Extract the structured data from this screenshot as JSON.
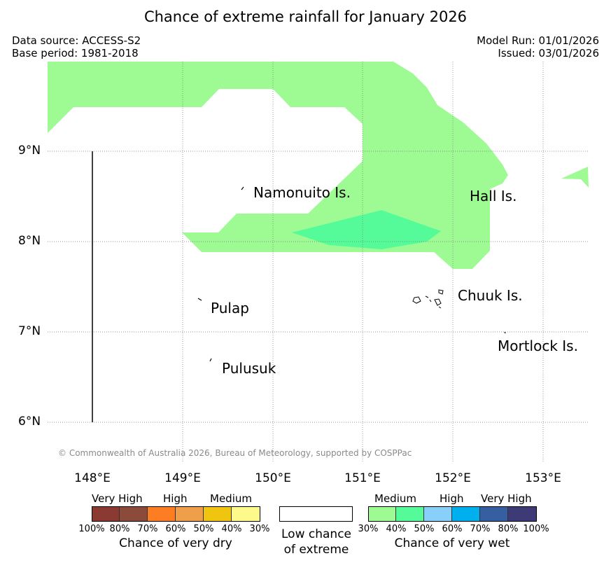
{
  "title": "Chance of extreme rainfall for January 2026",
  "data_source": "Data source: ACCESS-S2",
  "base_period": "Base period: 1981-2018",
  "model_run": "Model Run: 01/01/2026",
  "issued": "Issued: 03/01/2026",
  "latitude_labels": [
    "9°N",
    "8°N",
    "7°N",
    "6°N"
  ],
  "longitude_labels": [
    "148°E",
    "149°E",
    "150°E",
    "151°E",
    "152°E",
    "153°E"
  ],
  "places": [
    "Namonuito Is.",
    "Hall Is.",
    "Pulap",
    "Chuuk Is.",
    "Pulusuk",
    "Mortlock Is."
  ],
  "copyright": "© Commonwealth of Australia 2026, Bureau of Meteorology, supported by COSPPac",
  "legend": {
    "dry": {
      "headers": [
        "Very High",
        "High",
        "Medium"
      ],
      "ticks": [
        "100%",
        "80%",
        "70%",
        "60%",
        "50%",
        "40%",
        "30%"
      ],
      "colors": [
        "#8b3a32",
        "#8b4a3a",
        "#fd7e22",
        "#ef9e4a",
        "#efc510",
        "#fef98b"
      ],
      "title": "Chance of very dry"
    },
    "low": {
      "line1": "Low chance",
      "line2": "of extreme"
    },
    "wet": {
      "headers": [
        "Medium",
        "High",
        "Very High"
      ],
      "ticks": [
        "30%",
        "40%",
        "50%",
        "60%",
        "70%",
        "80%",
        "100%"
      ],
      "colors": [
        "#9efb94",
        "#55fb98",
        "#88cff9",
        "#00b0ee",
        "#355fa0",
        "#3e3a76"
      ],
      "title": "Chance of very wet"
    }
  },
  "map_colors": {
    "wet_30_40": "#9efb94",
    "wet_40_50": "#55fb98"
  }
}
